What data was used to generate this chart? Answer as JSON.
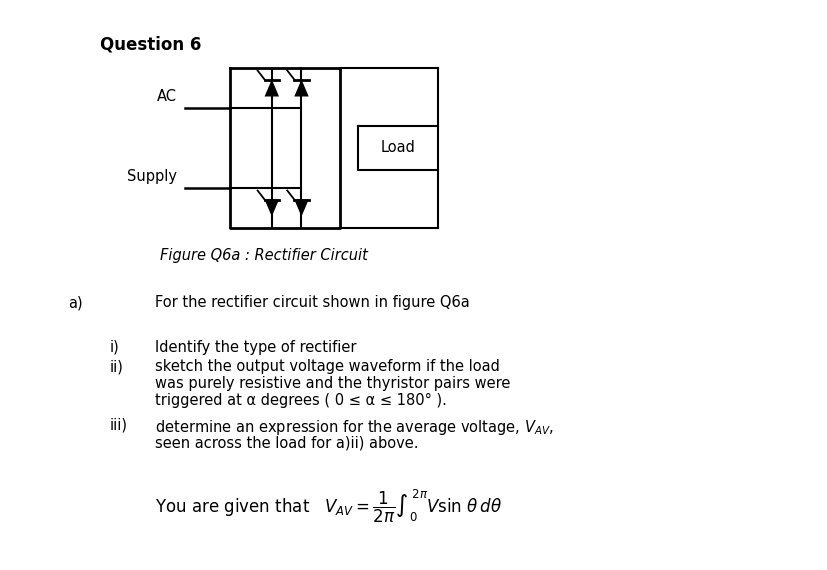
{
  "title": "Question 6",
  "figure_caption": "Figure Q6a : Rectifier Circuit",
  "ac_supply_line1": "AC",
  "ac_supply_line2": "Supply",
  "load_label": "Load",
  "part_a_label": "a)",
  "part_a_text": "For the rectifier circuit shown in figure Q6a",
  "item_i_label": "i)",
  "item_i_text": "Identify the type of rectifier",
  "item_ii_label": "ii)",
  "item_ii_line1": "sketch the output voltage waveform if the load",
  "item_ii_line2": "was purely resistive and the thyristor pairs were",
  "item_ii_line3": "triggered at α degrees ( 0 ≤ α ≤ 180° ).",
  "item_iii_label": "iii)",
  "item_iii_line1": "determine an expression for the average voltage, V",
  "item_iii_line1_sub": "AV",
  "item_iii_line1_end": ",",
  "item_iii_line2": "seen across the load for a)ii) above.",
  "formula_prefix": "You are given that",
  "background_color": "#ffffff",
  "text_color": "#000000",
  "font_size_title": 12,
  "font_size_body": 10.5,
  "font_size_formula": 12
}
